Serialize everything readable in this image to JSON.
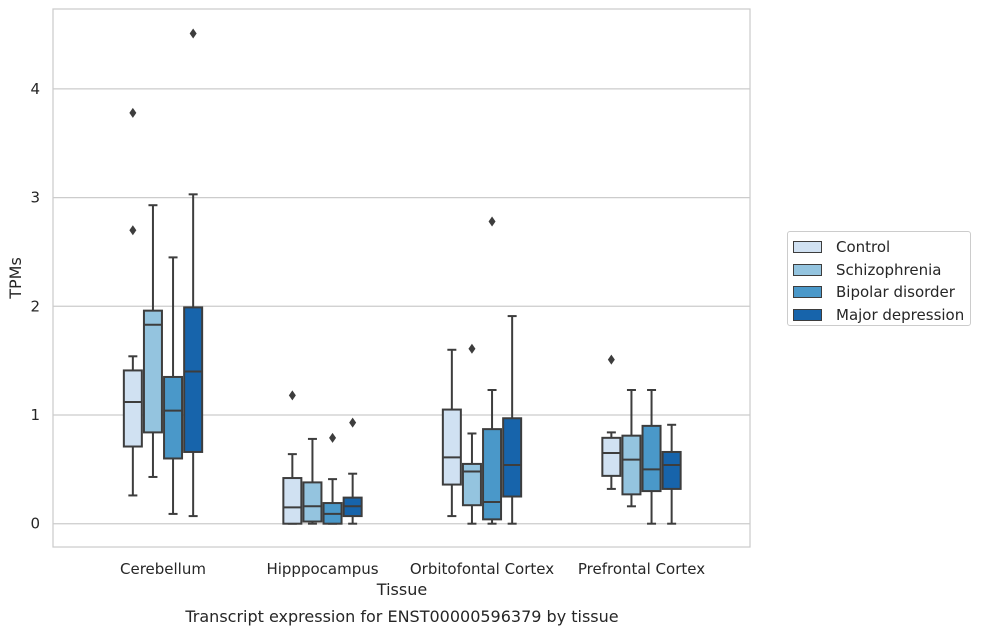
{
  "chart_data": {
    "type": "box",
    "title": "Transcript expression for ENST00000596379 by tissue",
    "xlabel": "Tissue",
    "ylabel": "TPMs",
    "ylim": [
      -0.22,
      4.85
    ],
    "yticks": [
      0,
      1,
      2,
      3,
      4
    ],
    "grid": "horizontal",
    "legend_position": "right",
    "categories": [
      "Cerebellum",
      "Hipppocampus",
      "Orbitofontal Cortex",
      "Prefrontal Cortex"
    ],
    "series": [
      {
        "name": "Control",
        "color": "#d0e1f2",
        "boxes": [
          {
            "whisker_low": 0.26,
            "q1": 0.71,
            "median": 1.12,
            "q3": 1.41,
            "whisker_high": 1.54,
            "outliers": [
              2.7,
              3.78
            ]
          },
          {
            "whisker_low": 0.0,
            "q1": 0.0,
            "median": 0.15,
            "q3": 0.42,
            "whisker_high": 0.64,
            "outliers": [
              1.18
            ]
          },
          {
            "whisker_low": 0.07,
            "q1": 0.36,
            "median": 0.61,
            "q3": 1.05,
            "whisker_high": 1.6,
            "outliers": []
          },
          {
            "whisker_low": 0.32,
            "q1": 0.44,
            "median": 0.65,
            "q3": 0.79,
            "whisker_high": 0.84,
            "outliers": [
              1.51
            ]
          }
        ]
      },
      {
        "name": "Schizophrenia",
        "color": "#94c4df",
        "boxes": [
          {
            "whisker_low": 0.43,
            "q1": 0.84,
            "median": 1.83,
            "q3": 1.96,
            "whisker_high": 2.93,
            "outliers": []
          },
          {
            "whisker_low": 0.0,
            "q1": 0.02,
            "median": 0.16,
            "q3": 0.38,
            "whisker_high": 0.78,
            "outliers": []
          },
          {
            "whisker_low": 0.0,
            "q1": 0.17,
            "median": 0.48,
            "q3": 0.55,
            "whisker_high": 0.83,
            "outliers": [
              1.61
            ]
          },
          {
            "whisker_low": 0.16,
            "q1": 0.27,
            "median": 0.59,
            "q3": 0.81,
            "whisker_high": 1.23,
            "outliers": []
          }
        ]
      },
      {
        "name": "Bipolar disorder",
        "color": "#4a98c9",
        "boxes": [
          {
            "whisker_low": 0.09,
            "q1": 0.6,
            "median": 1.04,
            "q3": 1.35,
            "whisker_high": 2.45,
            "outliers": []
          },
          {
            "whisker_low": 0.0,
            "q1": 0.0,
            "median": 0.09,
            "q3": 0.19,
            "whisker_high": 0.41,
            "outliers": [
              0.79
            ]
          },
          {
            "whisker_low": 0.0,
            "q1": 0.04,
            "median": 0.2,
            "q3": 0.87,
            "whisker_high": 1.23,
            "outliers": [
              2.78
            ]
          },
          {
            "whisker_low": 0.0,
            "q1": 0.3,
            "median": 0.5,
            "q3": 0.9,
            "whisker_high": 1.23,
            "outliers": []
          }
        ]
      },
      {
        "name": "Major depression",
        "color": "#1764ab",
        "boxes": [
          {
            "whisker_low": 0.07,
            "q1": 0.66,
            "median": 1.4,
            "q3": 1.99,
            "whisker_high": 3.03,
            "outliers": [
              4.51
            ]
          },
          {
            "whisker_low": 0.0,
            "q1": 0.07,
            "median": 0.16,
            "q3": 0.24,
            "whisker_high": 0.46,
            "outliers": [
              0.93
            ]
          },
          {
            "whisker_low": 0.0,
            "q1": 0.25,
            "median": 0.54,
            "q3": 0.97,
            "whisker_high": 1.91,
            "outliers": []
          },
          {
            "whisker_low": 0.0,
            "q1": 0.32,
            "median": 0.54,
            "q3": 0.66,
            "whisker_high": 0.91,
            "outliers": []
          }
        ]
      }
    ]
  }
}
